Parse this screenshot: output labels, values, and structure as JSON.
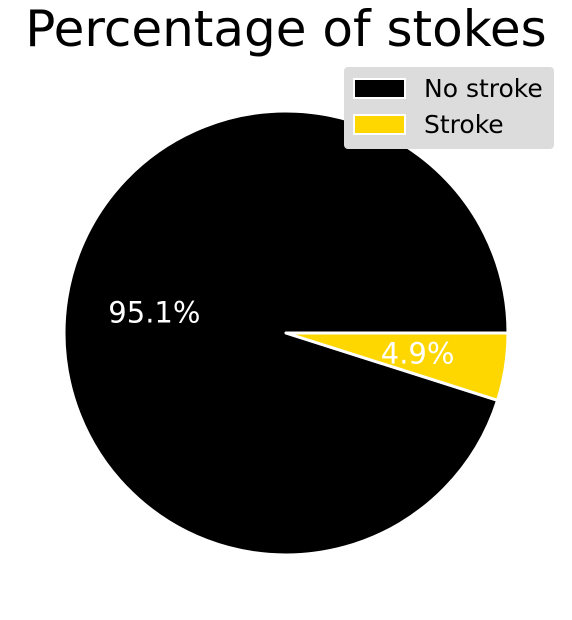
{
  "chart_data": {
    "type": "pie",
    "title": "Percentage of stokes",
    "categories": [
      "No stroke",
      "Stroke"
    ],
    "values": [
      95.1,
      4.9
    ],
    "labels": [
      "95.1%",
      "4.9%"
    ],
    "colors": [
      "#000000",
      "#ffd700"
    ],
    "legend": {
      "placement": "top-right",
      "entries": [
        "No stroke",
        "Stroke"
      ],
      "background": "#dcdcdc"
    }
  }
}
